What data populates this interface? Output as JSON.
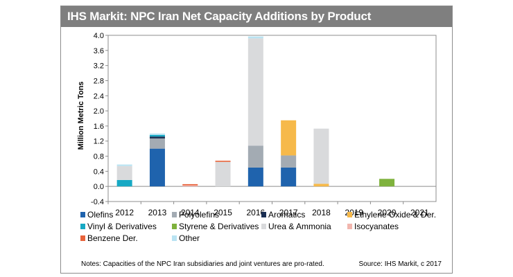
{
  "title": "IHS Markit: NPC Iran Net Capacity Additions by Product",
  "notes": "Notes: Capacities of the NPC Iran subsidiaries and joint ventures are pro-rated.",
  "source": "Source: IHS Markit, c 2017",
  "chart_data": {
    "type": "bar",
    "stacked": true,
    "categories": [
      "2012",
      "2013",
      "2014",
      "2015",
      "2016",
      "2017",
      "2018",
      "2019",
      "2020",
      "2021"
    ],
    "ylabel": "Million Metric Tons",
    "ylim": [
      -0.4,
      4.0
    ],
    "yticks": [
      "-0.4",
      "0.0",
      "0.4",
      "0.8",
      "1.2",
      "1.6",
      "2.0",
      "2.4",
      "2.8",
      "3.2",
      "3.6",
      "4.0"
    ],
    "legend_position": "bottom",
    "series": [
      {
        "name": "Olefins",
        "color": "#1f63ad",
        "values": [
          0,
          1.0,
          0,
          0,
          0.5,
          0.5,
          0,
          0,
          0,
          0
        ]
      },
      {
        "name": "Polyolefins",
        "color": "#a3abb3",
        "values": [
          0,
          0.27,
          0,
          0,
          0.58,
          0.32,
          0,
          0,
          0,
          0
        ]
      },
      {
        "name": "Aromatics",
        "color": "#1a2e52",
        "values": [
          0,
          0.05,
          0,
          0,
          0,
          0,
          0,
          0,
          0,
          0
        ]
      },
      {
        "name": "Ethylene Oxide & Der.",
        "color": "#f6b94a",
        "values": [
          0,
          0,
          0,
          0,
          0,
          0.93,
          0.07,
          0,
          0,
          0
        ]
      },
      {
        "name": "Vinyl & Derivatives",
        "color": "#17a9c4",
        "values": [
          0.17,
          0.04,
          0,
          0,
          0,
          0,
          0,
          0,
          0,
          0
        ]
      },
      {
        "name": "Styrene & Derivatives",
        "color": "#7fb23d",
        "values": [
          0,
          0,
          0,
          0,
          0,
          0,
          0,
          0,
          0.2,
          0
        ]
      },
      {
        "name": "Urea & Ammonia",
        "color": "#d9dadc",
        "values": [
          0.37,
          0,
          0,
          0.65,
          2.84,
          0,
          1.46,
          0,
          0,
          0
        ]
      },
      {
        "name": "Isocyanates",
        "color": "#f2b6ae",
        "values": [
          0,
          0,
          0.03,
          0,
          0,
          0,
          0,
          0,
          0,
          0
        ]
      },
      {
        "name": "Benzene Der.",
        "color": "#e8633a",
        "values": [
          0,
          0,
          0.03,
          0.03,
          0,
          0,
          0,
          0,
          0,
          0
        ]
      },
      {
        "name": "Other",
        "color": "#b9e3f2",
        "values": [
          0.04,
          0.04,
          0,
          0,
          0.05,
          0,
          0,
          0,
          0,
          0
        ]
      }
    ]
  }
}
